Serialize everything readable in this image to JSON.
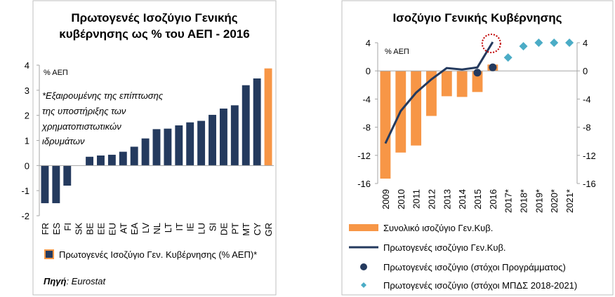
{
  "chart_data": [
    {
      "type": "bar",
      "title_lines": [
        "Πρωτογενές Ισοζύγιο Γενικής",
        "κυβέρνησης ως % του ΑΕΠ - 2016"
      ],
      "unit_label": "% ΑΕΠ",
      "note_lines": [
        "*Εξαιρουμένης της επίπτωσης",
        "της υποστήριξης των",
        "χρηματοπιστωτικών",
        "ιδρυμάτων"
      ],
      "categories": [
        "FR",
        "ES",
        "FI",
        "SK",
        "BE",
        "EE",
        "EU",
        "AT",
        "EA",
        "LV",
        "NL",
        "LT",
        "IT",
        "IE",
        "LU",
        "SI",
        "DE",
        "PT",
        "MT",
        "CY",
        "GR"
      ],
      "values": [
        -1.5,
        -1.5,
        -0.8,
        0,
        0.35,
        0.4,
        0.43,
        0.55,
        0.75,
        1.08,
        1.45,
        1.47,
        1.6,
        1.72,
        1.78,
        2.02,
        2.27,
        2.4,
        3.2,
        3.47,
        3.87
      ],
      "highlight": "GR",
      "ylim": [
        -2,
        4
      ],
      "yticks": [
        -2,
        -1,
        0,
        1,
        2,
        3,
        4
      ],
      "colors": {
        "bar": "#243a5e",
        "highlight": "#f79646"
      },
      "legend": [
        {
          "name": "Πρωτογενές Ισοζύγιο Γεν. Κυβέρνησης (% ΑΕΠ)*"
        }
      ],
      "source_label": "Πηγή",
      "source_value": ": Eurostat"
    },
    {
      "type": "bar+line+scatter",
      "title": "Ισοζύγιο Γενικής Κυβέρνησης",
      "unit_label": "% ΑΕΠ",
      "categories": [
        "2009",
        "2010",
        "2011",
        "2012",
        "2013",
        "2014",
        "2015",
        "2016",
        "2017*",
        "2018*",
        "2019*",
        "2020*",
        "2021*"
      ],
      "ylim": [
        -16,
        4
      ],
      "yticks": [
        -16,
        -12,
        -8,
        -4,
        0,
        4
      ],
      "series": [
        {
          "name": "Συνολικό ισοζύγιο Γεν.Κυβ.",
          "kind": "bar",
          "color": "#f79646",
          "values": [
            -15.3,
            -11.6,
            -10.6,
            -6.4,
            -3.6,
            -3.7,
            -3.0,
            0.9,
            null,
            null,
            null,
            null,
            null
          ]
        },
        {
          "name": "Πρωτογενές ισοζύγιο Γεν.Κυβ.",
          "kind": "line",
          "color": "#243a5e",
          "values": [
            -10.3,
            -5.7,
            -3.1,
            -1.2,
            0.4,
            0.2,
            0.5,
            4.1,
            null,
            null,
            null,
            null,
            null
          ]
        },
        {
          "name": "Πρωτογενές ισοζύγιο (στόχοι Προγράμματος)",
          "kind": "scatter-circle",
          "color": "#243a5e",
          "values": [
            null,
            null,
            null,
            null,
            null,
            null,
            -0.25,
            0.5,
            null,
            null,
            null,
            null,
            null
          ]
        },
        {
          "name": "Πρωτογενές ισοζύγιο (στόχοι ΜΠΔΣ 2018-2021)",
          "kind": "scatter-diamond",
          "color": "#4bacc6",
          "values": [
            null,
            null,
            null,
            null,
            null,
            null,
            null,
            null,
            1.9,
            3.5,
            4.0,
            4.0,
            4.0
          ]
        }
      ],
      "annotation": "dotted red circle around 2016 primary balance",
      "annotation_color": "#c00000"
    }
  ]
}
